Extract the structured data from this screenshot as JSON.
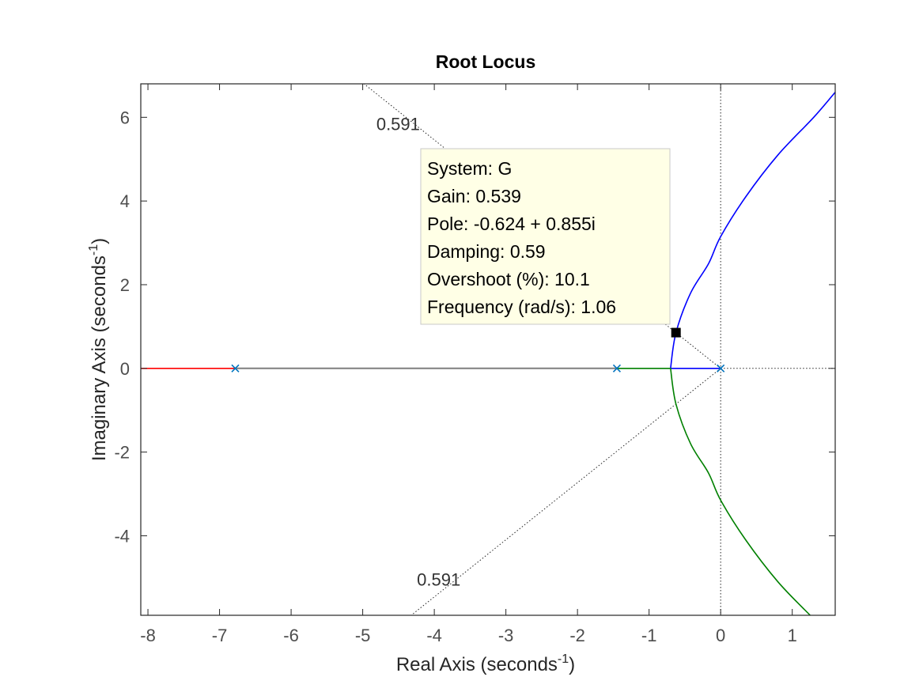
{
  "chart_data": {
    "type": "scatter",
    "title": "Root Locus",
    "xlabel": {
      "text": "Real Axis (seconds",
      "sup": "-1",
      "close": ")"
    },
    "ylabel": {
      "text": "Imaginary Axis (seconds",
      "sup": "-1",
      "close": ")"
    },
    "xlim": [
      -8.1,
      1.6
    ],
    "ylim": [
      -5.9,
      6.8
    ],
    "xticks": [
      -8,
      -7,
      -6,
      -5,
      -4,
      -3,
      -2,
      -1,
      0,
      1
    ],
    "yticks": [
      -4,
      -2,
      0,
      2,
      4,
      6
    ],
    "grid": false,
    "legend": "none",
    "colors": {
      "branch_1": "#0000ff",
      "branch_2": "#008000",
      "branch_3": "#ff0000",
      "pole_marker": "#0072bd",
      "axis": "#262626",
      "real_axis_segment": "#7f7f7f",
      "datatip_fill": "#ffffe6",
      "datatip_edge": "#c8c8c8"
    },
    "open_loop_poles": [
      {
        "re": 0,
        "im": 0
      },
      {
        "re": -1.45,
        "im": 0
      },
      {
        "re": -6.78,
        "im": 0
      }
    ],
    "series": [
      {
        "points": [
          [
            0,
            0
          ],
          [
            -0.7,
            0
          ],
          [
            -0.624,
            0.855
          ],
          [
            -0.42,
            1.8
          ],
          [
            -0.17,
            2.5
          ],
          [
            0,
            3.15
          ],
          [
            0.35,
            4.1
          ],
          [
            0.8,
            5.1
          ],
          [
            1.3,
            6.0
          ],
          [
            1.6,
            6.6
          ]
        ]
      },
      {
        "points": [
          [
            -1.45,
            0
          ],
          [
            -0.7,
            0
          ],
          [
            -0.624,
            -0.855
          ],
          [
            -0.42,
            -1.8
          ],
          [
            -0.17,
            -2.5
          ],
          [
            0,
            -3.15
          ],
          [
            0.35,
            -4.1
          ],
          [
            0.8,
            -5.1
          ],
          [
            1.25,
            -5.9
          ]
        ]
      },
      {
        "points": [
          [
            -6.78,
            0
          ],
          [
            -8.1,
            0
          ]
        ]
      }
    ],
    "damping_lines": [
      {
        "label": "0.591",
        "direction": "upper"
      },
      {
        "label": "0.591",
        "direction": "lower"
      }
    ],
    "damping_ratio": 0.591,
    "datatip": {
      "point": {
        "re": -0.624,
        "im": 0.855
      },
      "lines": [
        "System: G",
        "Gain: 0.539",
        "Pole: -0.624 + 0.855i",
        "Damping: 0.59",
        "Overshoot (%): 10.1",
        "Frequency (rad/s): 1.06"
      ]
    }
  }
}
